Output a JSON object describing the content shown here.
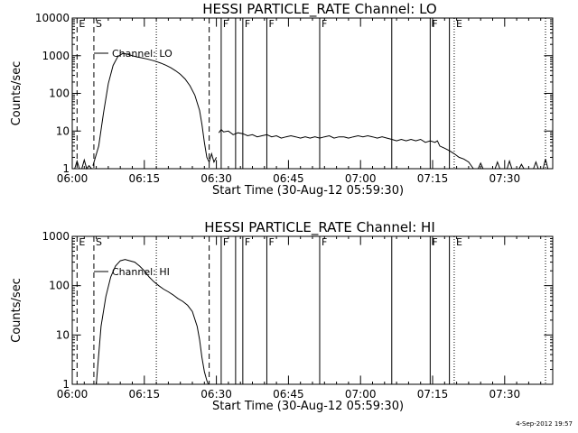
{
  "date_stamp": "4-Sep-2012 19:57",
  "chart_data": [
    {
      "type": "line",
      "title": "HESSI PARTICLE_RATE Channel: LO",
      "xlabel": "Start Time (30-Aug-12 05:59:30)",
      "ylabel": "Counts/sec",
      "x_unit": "minutes after 06:00",
      "x_ticks": [
        "06:00",
        "06:15",
        "06:30",
        "06:45",
        "07:00",
        "07:15",
        "07:30"
      ],
      "x_tick_values": [
        0,
        15,
        30,
        45,
        60,
        75,
        90
      ],
      "xlim": [
        0,
        100
      ],
      "y_scale": "log",
      "ylim": [
        1,
        10000
      ],
      "y_ticks": [
        "1",
        "10",
        "100",
        "1000",
        "10000"
      ],
      "y_tick_values": [
        1,
        10,
        100,
        1000,
        10000
      ],
      "legend": "Channel: LO",
      "legend_position": "top-left",
      "markers": [
        {
          "x": 1.0,
          "label": "E",
          "style": "dashed"
        },
        {
          "x": 4.5,
          "label": "S",
          "style": "dashed"
        },
        {
          "x": 28.5,
          "label": "",
          "style": "dashed"
        },
        {
          "x": 17.5,
          "label": "",
          "style": "dotted"
        },
        {
          "x": 31.0,
          "label": "F",
          "style": "solid"
        },
        {
          "x": 34.0,
          "label": "",
          "style": "solid"
        },
        {
          "x": 35.5,
          "label": "F",
          "style": "solid"
        },
        {
          "x": 40.5,
          "label": "F",
          "style": "solid"
        },
        {
          "x": 51.5,
          "label": "F",
          "style": "solid"
        },
        {
          "x": 66.5,
          "label": "",
          "style": "solid"
        },
        {
          "x": 74.5,
          "label": "F",
          "style": "solid"
        },
        {
          "x": 78.5,
          "label": "",
          "style": "solid"
        },
        {
          "x": 79.5,
          "label": "E",
          "style": "dotted"
        },
        {
          "x": 98.5,
          "label": "",
          "style": "dotted"
        }
      ],
      "series": [
        {
          "name": "Channel: LO",
          "segments": [
            {
              "x": [
                0.5,
                1.0,
                1.5,
                2.0,
                2.5,
                3.0,
                3.5,
                4.0
              ],
              "y": [
                1,
                1.6,
                1,
                1,
                1.7,
                1,
                1.2,
                1
              ]
            },
            {
              "x": [
                4.3,
                5.5,
                6.5,
                7.5,
                8.5,
                9.5,
                10.5,
                11.5,
                12.5,
                13.5,
                14.5,
                15.5,
                16.5,
                17.5,
                18.5,
                19.5,
                20.5,
                21.5,
                22.5,
                23.5,
                24.5,
                25.5,
                26.5,
                27.0,
                27.5,
                28.0,
                28.5,
                29.0,
                29.5,
                30.0
              ],
              "y": [
                1.2,
                4,
                30,
                180,
                550,
                950,
                1150,
                1100,
                1000,
                930,
                880,
                820,
                760,
                700,
                630,
                560,
                480,
                400,
                320,
                240,
                160,
                90,
                35,
                15,
                5,
                2,
                1.5,
                2.5,
                1.5,
                2.0
              ]
            },
            {
              "x": [
                30.5,
                31.0,
                31.5,
                32.5,
                33.5,
                34.5,
                35.5,
                36.5,
                37.5,
                38.5,
                39.5,
                40.5,
                41.5,
                42.5,
                43.5,
                44.5,
                45.5,
                46.5,
                47.5,
                48.5,
                49.5,
                50.5,
                51.5,
                52.5,
                53.5,
                54.5,
                55.5,
                56.5,
                57.5,
                58.5,
                59.5,
                60.5,
                61.5,
                62.5,
                63.5,
                64.5,
                65.5,
                66.5,
                67.5,
                68.5,
                69.5,
                70.5,
                71.5,
                72.5,
                73.5,
                74.5,
                75.5,
                76.0,
                76.5,
                77.5,
                78.5,
                79.5,
                80.5,
                81.5,
                82.5,
                83.5
              ],
              "y": [
                9,
                11,
                9.5,
                10,
                8,
                9,
                8.5,
                7.5,
                8,
                7,
                7.5,
                8,
                7,
                7.5,
                6.5,
                7,
                7.5,
                7,
                6.5,
                7,
                6.5,
                7,
                6.5,
                7,
                7.5,
                6.5,
                7,
                7,
                6.5,
                7,
                7.5,
                7,
                7.5,
                7,
                6.5,
                7,
                6.5,
                6,
                5.5,
                6,
                5.5,
                6,
                5.5,
                6,
                5,
                5.5,
                5,
                5.5,
                4,
                3.5,
                3,
                2.5,
                2,
                1.8,
                1.5,
                1
              ]
            },
            {
              "x": [
                84.5,
                85.0,
                85.5,
                88.0,
                88.5,
                89.0,
                90.5,
                91.0,
                91.5,
                93.0,
                93.5,
                94.0,
                96.0,
                96.5,
                97.0,
                98.0,
                98.5,
                99.0
              ],
              "y": [
                1,
                1.4,
                1,
                1,
                1.5,
                1,
                1,
                1.6,
                1,
                1,
                1.3,
                1,
                1,
                1.5,
                1,
                1,
                1.8,
                1
              ]
            }
          ]
        }
      ]
    },
    {
      "type": "line",
      "title": "HESSI PARTICLE_RATE Channel: HI",
      "xlabel": "Start Time (30-Aug-12 05:59:30)",
      "ylabel": "Counts/sec",
      "x_unit": "minutes after 06:00",
      "x_ticks": [
        "06:00",
        "06:15",
        "06:30",
        "06:45",
        "07:00",
        "07:15",
        "07:30"
      ],
      "x_tick_values": [
        0,
        15,
        30,
        45,
        60,
        75,
        90
      ],
      "xlim": [
        0,
        100
      ],
      "y_scale": "log",
      "ylim": [
        1,
        1000
      ],
      "y_ticks": [
        "1",
        "10",
        "100",
        "1000"
      ],
      "y_tick_values": [
        1,
        10,
        100,
        1000
      ],
      "legend": "Channel: HI",
      "legend_position": "top-left",
      "markers": [
        {
          "x": 1.0,
          "label": "E",
          "style": "dashed"
        },
        {
          "x": 4.5,
          "label": "S",
          "style": "dashed"
        },
        {
          "x": 28.5,
          "label": "",
          "style": "dashed"
        },
        {
          "x": 17.5,
          "label": "",
          "style": "dotted"
        },
        {
          "x": 31.0,
          "label": "F",
          "style": "solid"
        },
        {
          "x": 34.0,
          "label": "",
          "style": "solid"
        },
        {
          "x": 35.5,
          "label": "F",
          "style": "solid"
        },
        {
          "x": 40.5,
          "label": "F",
          "style": "solid"
        },
        {
          "x": 51.5,
          "label": "F",
          "style": "solid"
        },
        {
          "x": 66.5,
          "label": "",
          "style": "solid"
        },
        {
          "x": 74.5,
          "label": "F",
          "style": "solid"
        },
        {
          "x": 78.5,
          "label": "",
          "style": "solid"
        },
        {
          "x": 79.5,
          "label": "E",
          "style": "dotted"
        },
        {
          "x": 98.5,
          "label": "",
          "style": "dotted"
        }
      ],
      "series": [
        {
          "name": "Channel: HI",
          "segments": [
            {
              "x": [
                5.0,
                5.5,
                6.0,
                7.0,
                8.0,
                9.0,
                10.0,
                11.0,
                12.0,
                13.0,
                14.0,
                15.0,
                16.0,
                17.0,
                18.0,
                19.0,
                20.0,
                21.0,
                22.0,
                23.0,
                24.0,
                25.0,
                26.0,
                26.5,
                27.0,
                27.5,
                28.0,
                28.3
              ],
              "y": [
                1,
                4,
                15,
                60,
                150,
                250,
                320,
                340,
                320,
                300,
                250,
                200,
                150,
                120,
                100,
                85,
                75,
                65,
                55,
                48,
                40,
                30,
                15,
                8,
                3.5,
                1.8,
                1.2,
                1
              ]
            }
          ]
        }
      ]
    }
  ]
}
